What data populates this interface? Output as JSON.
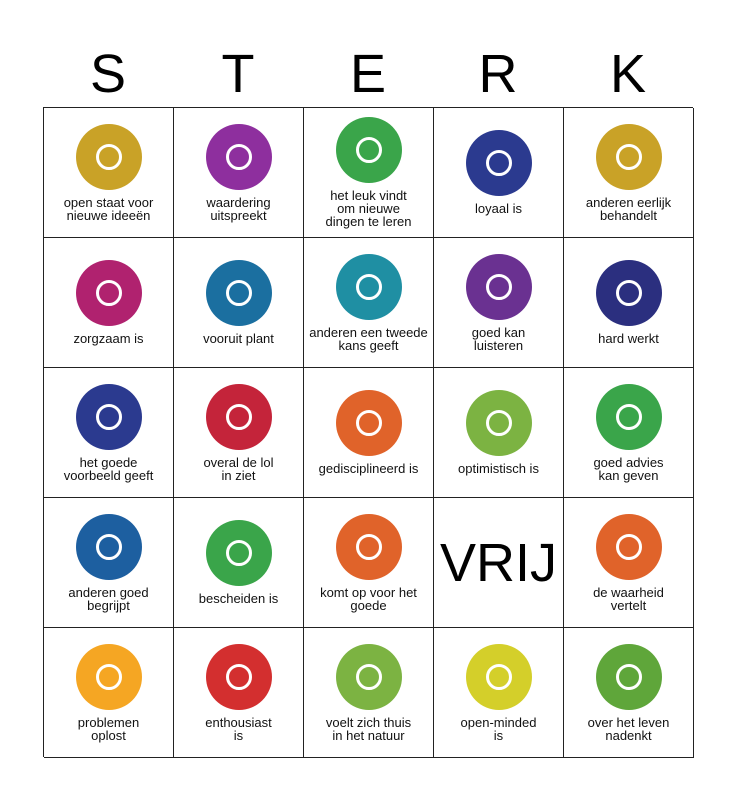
{
  "header": {
    "letters": [
      "S",
      "T",
      "E",
      "R",
      "K"
    ]
  },
  "grid": {
    "rows": [
      [
        {
          "lines": [
            "open staat voor",
            "nieuwe ideeën"
          ],
          "color": "#c9a227"
        },
        {
          "lines": [
            "waardering",
            "uitspreekt"
          ],
          "color": "#8e2f9e"
        },
        {
          "lines": [
            "het leuk vindt",
            "om nieuwe",
            "dingen te leren"
          ],
          "color": "#3aa54a"
        },
        {
          "lines": [
            "loyaal is"
          ],
          "color": "#2b3a8f"
        },
        {
          "lines": [
            "anderen eerlijk",
            "behandelt"
          ],
          "color": "#c9a227"
        }
      ],
      [
        {
          "lines": [
            "zorgzaam is"
          ],
          "color": "#b0226f"
        },
        {
          "lines": [
            "vooruit plant"
          ],
          "color": "#1b6fa0"
        },
        {
          "lines": [
            "anderen een tweede",
            "kans geeft"
          ],
          "color": "#1f8fa3"
        },
        {
          "lines": [
            "goed kan",
            "luisteren"
          ],
          "color": "#6a3191"
        },
        {
          "lines": [
            "hard werkt"
          ],
          "color": "#2b2f7f"
        }
      ],
      [
        {
          "lines": [
            "het goede",
            "voorbeeld geeft"
          ],
          "color": "#2b3a8f"
        },
        {
          "lines": [
            "overal de lol",
            "in ziet"
          ],
          "color": "#c4243a"
        },
        {
          "lines": [
            "gedisciplineerd is"
          ],
          "color": "#e0632a"
        },
        {
          "lines": [
            "optimistisch is"
          ],
          "color": "#7cb342"
        },
        {
          "lines": [
            "goed advies",
            "kan geven"
          ],
          "color": "#3aa54a"
        }
      ],
      [
        {
          "lines": [
            "anderen goed",
            "begrijpt"
          ],
          "color": "#1d5fa0"
        },
        {
          "lines": [
            "bescheiden is"
          ],
          "color": "#3aa54a"
        },
        {
          "lines": [
            "komt op voor het",
            "goede"
          ],
          "color": "#e0632a"
        },
        {
          "text": "VRIJ"
        },
        {
          "lines": [
            "de waarheid",
            "vertelt"
          ],
          "color": "#e0632a"
        }
      ],
      [
        {
          "lines": [
            "problemen",
            "oplost"
          ],
          "color": "#f5a623"
        },
        {
          "lines": [
            "enthousiast",
            "is"
          ],
          "color": "#d32f2f"
        },
        {
          "lines": [
            "voelt zich thuis",
            "in het natuur"
          ],
          "color": "#7cb342"
        },
        {
          "lines": [
            "open-minded",
            "is"
          ],
          "color": "#d4cf2a"
        },
        {
          "lines": [
            "over het leven",
            "nadenkt"
          ],
          "color": "#5fa63a"
        }
      ]
    ]
  }
}
